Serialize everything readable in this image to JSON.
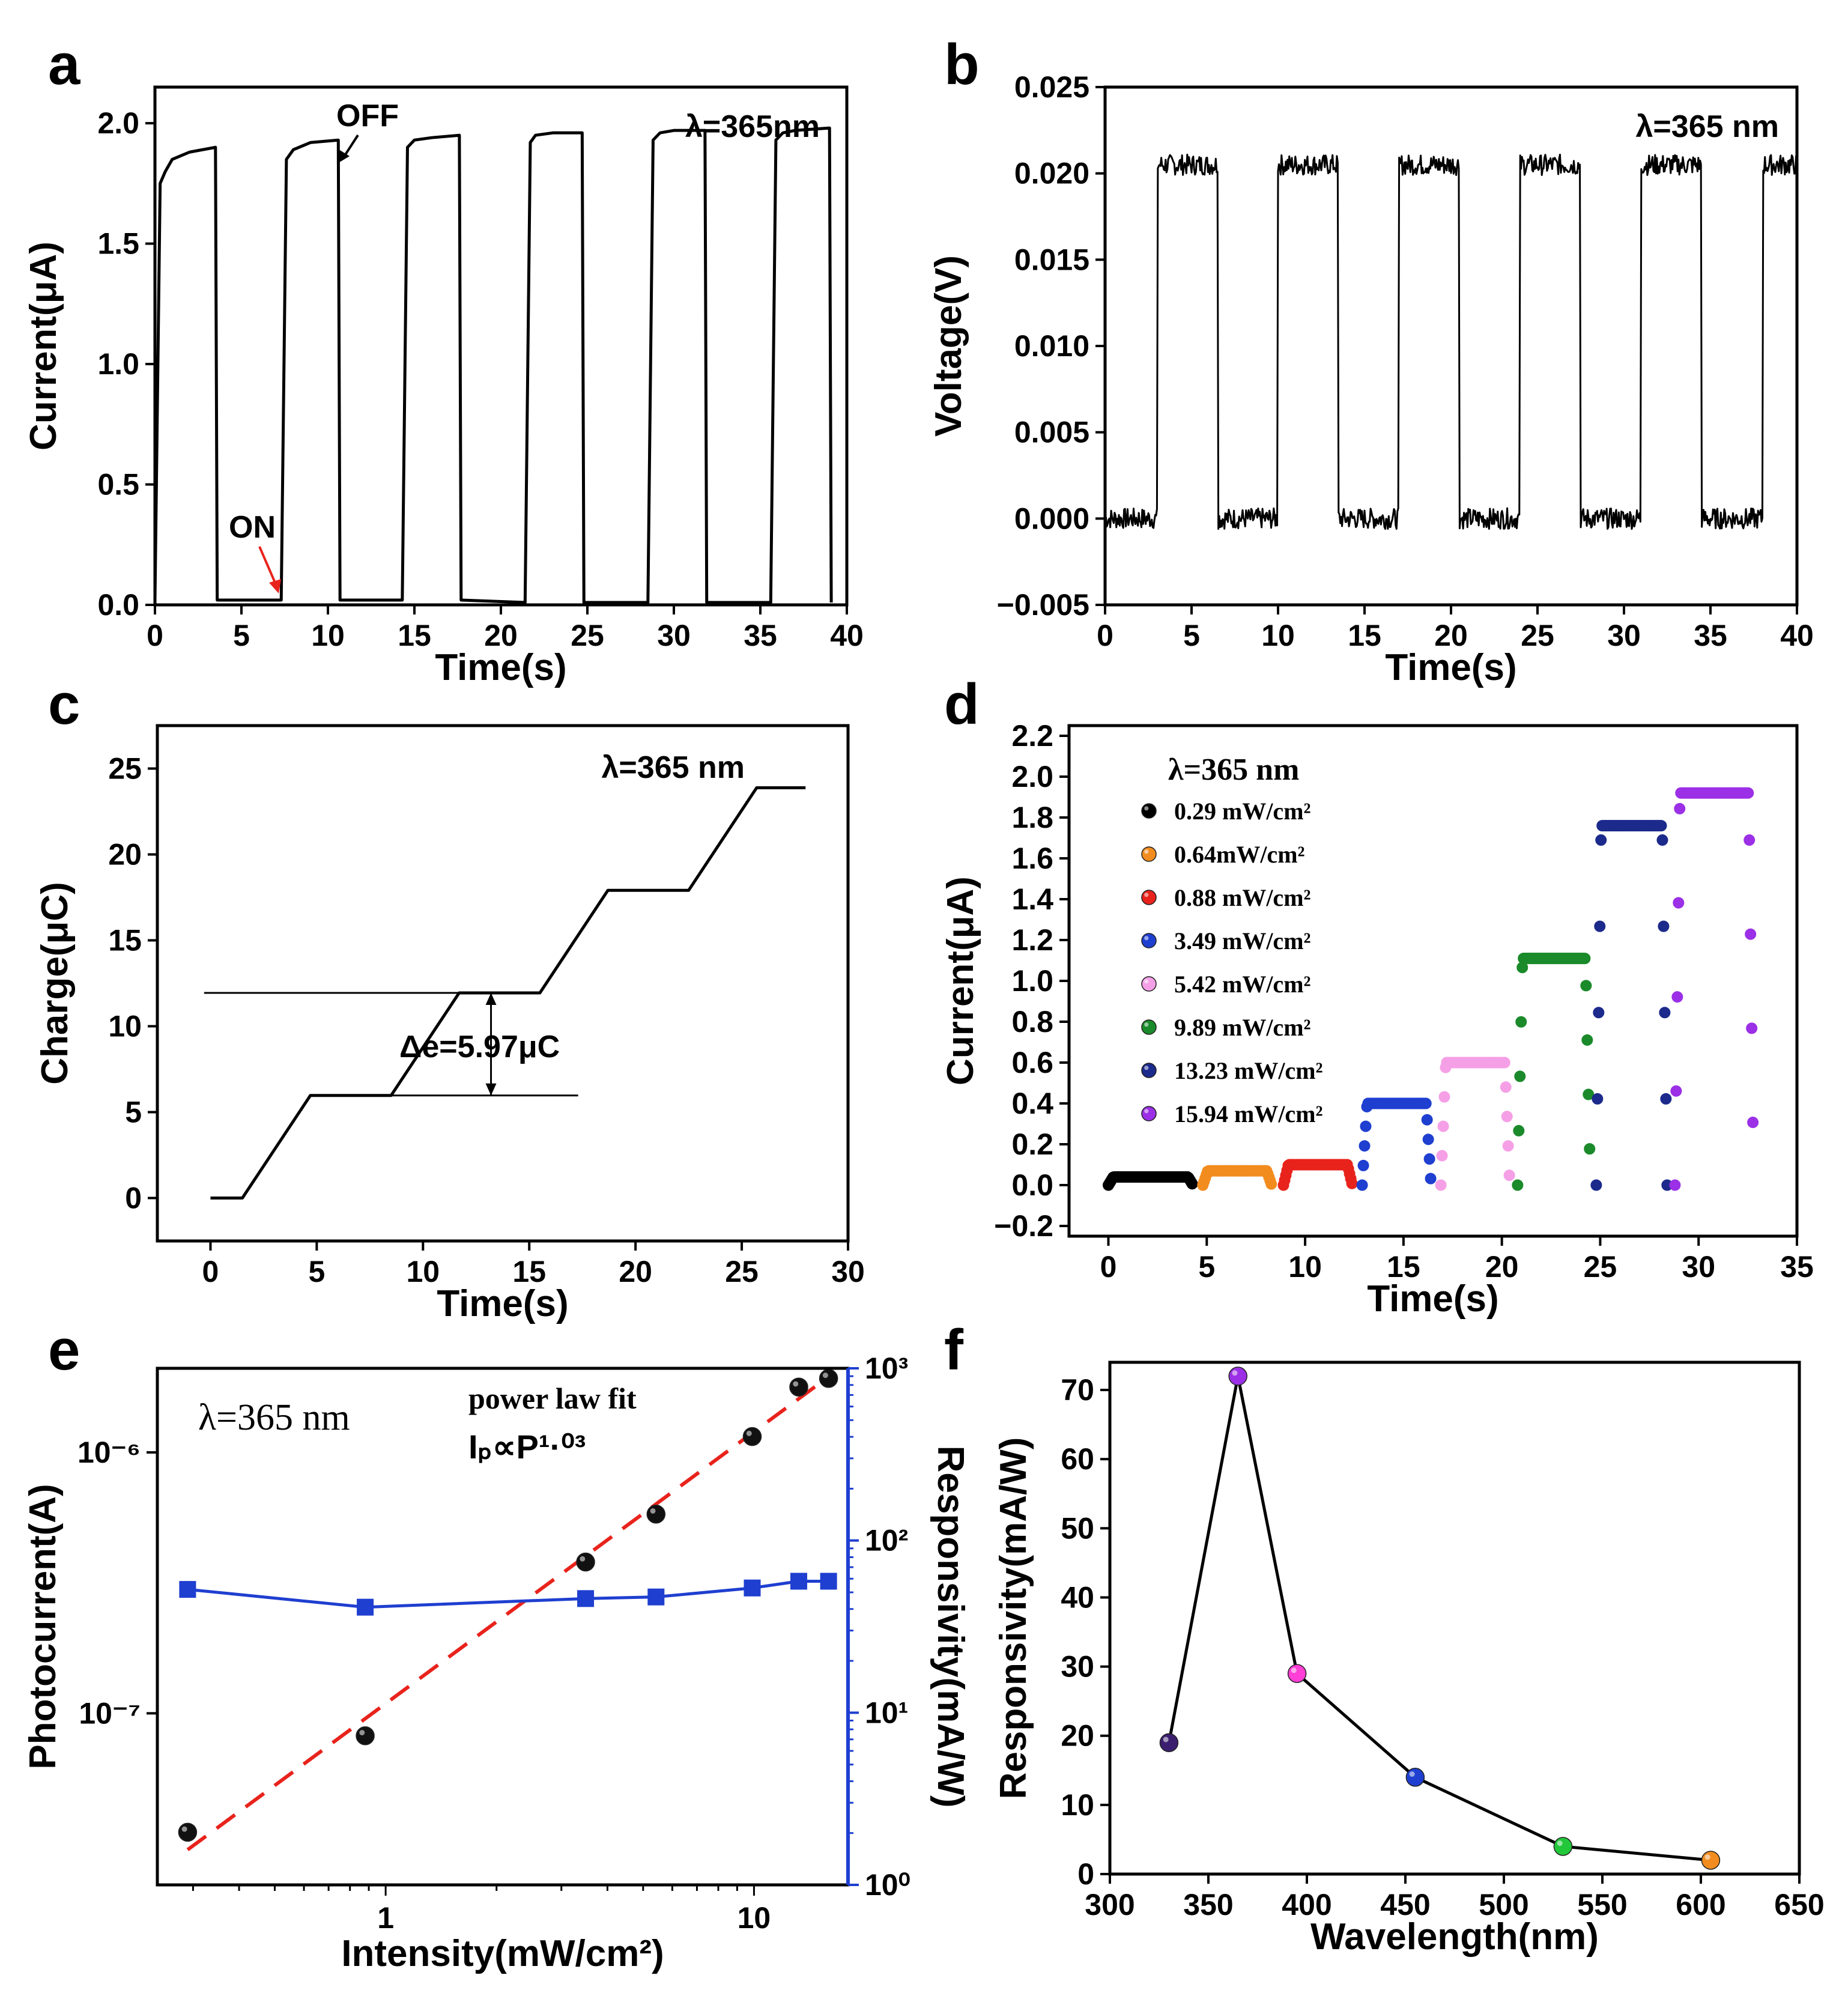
{
  "colors": {
    "axis": "#000000",
    "fit_line": "#e8231c",
    "responsivity": "#1f3fd0",
    "on_label": "#e8231c"
  },
  "chart_data": [
    {
      "panel": "a",
      "type": "line",
      "xlabel": "Time(s)",
      "ylabel": "Current(μA)",
      "xlim": [
        0,
        40
      ],
      "ylim": [
        0,
        2.15
      ],
      "xticks": [
        "0",
        "5",
        "10",
        "15",
        "20",
        "25",
        "30",
        "35",
        "40"
      ],
      "yticks": [
        "0.0",
        "0.5",
        "1.0",
        "1.5",
        "2.0"
      ],
      "annotations": {
        "wavelength": "λ=365nm",
        "off": "OFF",
        "on": "ON"
      },
      "series": [
        {
          "name": "current",
          "x": [
            0,
            0.3,
            0.6,
            1,
            2,
            3.5,
            3.6,
            7.3,
            7.6,
            8,
            9,
            10.6,
            10.7,
            14.3,
            14.6,
            15,
            16,
            17.6,
            17.7,
            21.4,
            21.7,
            22,
            23,
            24.7,
            24.8,
            28.5,
            28.8,
            29.2,
            30,
            31.8,
            31.9,
            35.6,
            35.9,
            36.3,
            37,
            39,
            39.1
          ],
          "y": [
            0.02,
            1.75,
            1.8,
            1.85,
            1.88,
            1.9,
            0.02,
            0.02,
            1.85,
            1.89,
            1.92,
            1.93,
            0.02,
            0.02,
            1.9,
            1.93,
            1.94,
            1.95,
            0.02,
            0.01,
            1.92,
            1.95,
            1.96,
            1.96,
            0.01,
            0.01,
            1.93,
            1.96,
            1.97,
            1.97,
            0.01,
            0.01,
            1.93,
            1.96,
            1.97,
            1.98,
            0.01
          ]
        }
      ]
    },
    {
      "panel": "b",
      "type": "line",
      "xlabel": "Time(s)",
      "ylabel": "Voltage(V)",
      "xlim": [
        0,
        40
      ],
      "ylim": [
        -0.005,
        0.025
      ],
      "xticks": [
        "0",
        "5",
        "10",
        "15",
        "20",
        "25",
        "30",
        "35",
        "40"
      ],
      "yticks": [
        "−0.005",
        "0.000",
        "0.005",
        "0.010",
        "0.015",
        "0.020",
        "0.025"
      ],
      "annotations": {
        "wavelength": "λ=365 nm"
      },
      "series": [
        {
          "name": "voltage",
          "pulse_on_s": [
            [
              3,
              6.5
            ],
            [
              10,
              13.5
            ],
            [
              17,
              20.5
            ],
            [
              24,
              27.5
            ],
            [
              31,
              34.5
            ],
            [
              38,
              40
            ]
          ],
          "on_level": 0.0205,
          "off_level": 0.0
        }
      ]
    },
    {
      "panel": "c",
      "type": "line",
      "xlabel": "Time(s)",
      "ylabel": "Charge(μC)",
      "xlim": [
        -2.5,
        30
      ],
      "ylim": [
        -2.5,
        27.5
      ],
      "xticks": [
        "0",
        "5",
        "10",
        "15",
        "20",
        "25",
        "30"
      ],
      "yticks": [
        "0",
        "5",
        "10",
        "15",
        "20",
        "25"
      ],
      "annotations": {
        "wavelength": "λ=365 nm",
        "delta": "Δe=5.97μC"
      },
      "series": [
        {
          "name": "charge",
          "x": [
            0,
            1.5,
            4.7,
            8.5,
            11.7,
            15.5,
            18.7,
            22.5,
            25.7,
            28
          ],
          "y": [
            0,
            0,
            5.97,
            5.97,
            11.94,
            11.94,
            17.91,
            17.91,
            23.88,
            23.88
          ]
        }
      ]
    },
    {
      "panel": "d",
      "type": "scatter",
      "xlabel": "Time(s)",
      "ylabel": "Current(μA)",
      "xlim": [
        -2,
        35
      ],
      "ylim": [
        -0.25,
        2.25
      ],
      "xticks": [
        "0",
        "5",
        "10",
        "15",
        "20",
        "25",
        "30",
        "35"
      ],
      "yticks": [
        "−0.2",
        "0.0",
        "0.2",
        "0.4",
        "0.6",
        "0.8",
        "1.0",
        "1.2",
        "1.4",
        "1.6",
        "1.8",
        "2.0",
        "2.2"
      ],
      "legend_title": "λ=365 nm",
      "series": [
        {
          "name": "0.29 mW/cm²",
          "color": "#000000",
          "t_start": 0,
          "t_end": 4.3,
          "level": 0.04
        },
        {
          "name": "0.64mW/cm²",
          "color": "#f28c1f",
          "t_start": 4.8,
          "t_end": 8.3,
          "level": 0.07
        },
        {
          "name": "0.88 mW/cm²",
          "color": "#e8231c",
          "t_start": 8.9,
          "t_end": 12.4,
          "level": 0.1
        },
        {
          "name": "3.49 mW/cm²",
          "color": "#1f3fd0",
          "t_start": 12.9,
          "t_end": 16.4,
          "level": 0.4
        },
        {
          "name": "5.42 mW/cm²",
          "color": "#f5a0e6",
          "t_start": 16.9,
          "t_end": 20.4,
          "level": 0.6
        },
        {
          "name": "9.89 mW/cm²",
          "color": "#1a8a2a",
          "t_start": 20.8,
          "t_end": 24.5,
          "level": 1.11
        },
        {
          "name": "13.23 mW/cm²",
          "color": "#1c2a8c",
          "t_start": 24.8,
          "t_end": 28.4,
          "level": 1.76
        },
        {
          "name": "15.94 mW/cm²",
          "color": "#9b30e6",
          "t_start": 28.8,
          "t_end": 32.8,
          "level": 1.92
        }
      ]
    },
    {
      "panel": "e",
      "type": "scatter",
      "xlabel": "Intensity(mW/cm²)",
      "ylabel": "Photocurrent(A)",
      "ylabel_right": "Responsivity(mA/W)",
      "x_scale": "log",
      "y_scale": "log",
      "xlim": [
        0.24,
        18
      ],
      "ylim": [
        2.2e-08,
        2.1e-06
      ],
      "y2lim": [
        1,
        1000
      ],
      "xticks": [
        "1",
        "10"
      ],
      "yticks": [
        "10⁻⁷",
        "10⁻⁶"
      ],
      "y2ticks": [
        "10⁰",
        "10¹",
        "10²",
        "10³"
      ],
      "annotations": {
        "wavelength": "λ=365 nm",
        "fit_title": "power law fit",
        "fit_eq": "Iₚ∝P¹·⁰³"
      },
      "series": [
        {
          "name": "Photocurrent",
          "x": [
            0.29,
            0.88,
            3.49,
            5.42,
            9.89,
            13.23,
            15.94
          ],
          "y": [
            3.5e-08,
            8.2e-08,
            3.8e-07,
            5.8e-07,
            1.15e-06,
            1.78e-06,
            1.92e-06
          ]
        },
        {
          "name": "power law fit",
          "x": [
            0.29,
            15.94
          ],
          "y": [
            3e-08,
            1.95e-06
          ]
        },
        {
          "name": "Responsivity",
          "x": [
            0.29,
            0.88,
            3.49,
            5.42,
            9.89,
            13.23,
            15.94
          ],
          "y": [
            52,
            41,
            46,
            47,
            53,
            58,
            58
          ]
        }
      ]
    },
    {
      "panel": "f",
      "type": "line",
      "xlabel": "Wavelength(nm)",
      "ylabel": "Responsivity(mA/W)",
      "xlim": [
        300,
        650
      ],
      "ylim": [
        0,
        74
      ],
      "xticks": [
        "300",
        "350",
        "400",
        "450",
        "500",
        "550",
        "600",
        "650"
      ],
      "yticks": [
        "0",
        "10",
        "20",
        "30",
        "40",
        "50",
        "60",
        "70"
      ],
      "x": [
        330,
        365,
        395,
        455,
        530,
        605
      ],
      "y": [
        19,
        72,
        29,
        14,
        4,
        2
      ],
      "point_colors": [
        "#3b1f6e",
        "#9b30e6",
        "#ff3fd6",
        "#1f3fd0",
        "#22c83a",
        "#f28c1f"
      ]
    }
  ]
}
